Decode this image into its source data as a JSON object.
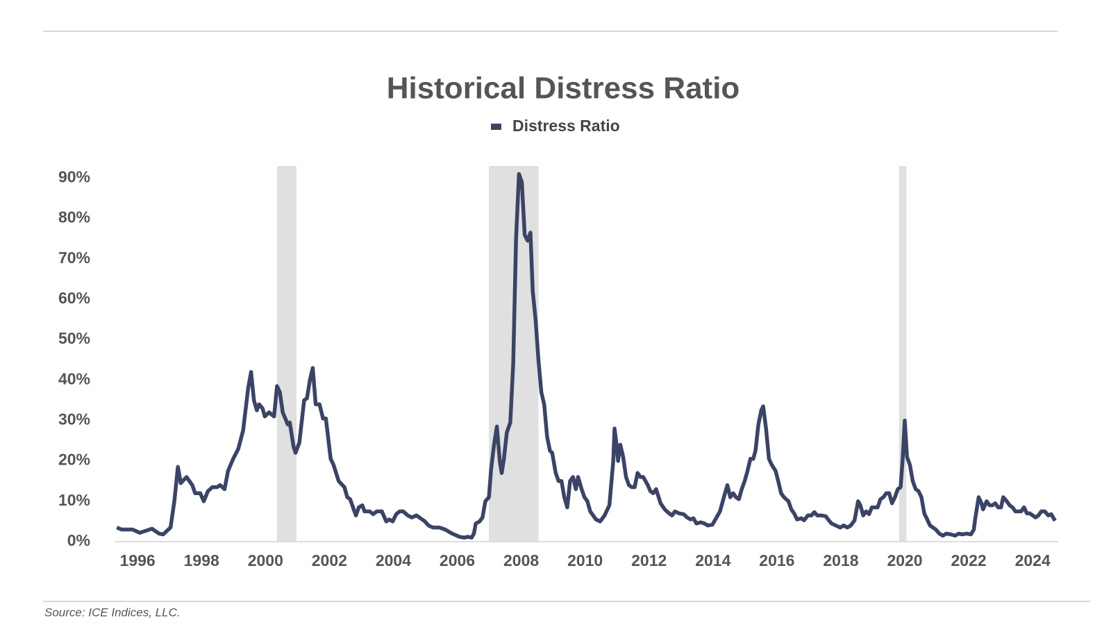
{
  "chart_data": {
    "type": "line",
    "title": "Historical Distress Ratio",
    "source": "Source: ICE Indices, LLC.",
    "x": [
      1995.35,
      1995.5,
      1995.84,
      1996.07,
      1996.45,
      1996.67,
      1996.8,
      1997.03,
      1997.15,
      1997.26,
      1997.35,
      1997.53,
      1997.71,
      1997.8,
      1997.96,
      1998.07,
      1998.2,
      1998.34,
      1998.49,
      1998.58,
      1998.72,
      1998.83,
      1998.99,
      1999.15,
      1999.3,
      1999.46,
      1999.55,
      1999.64,
      1999.73,
      1999.8,
      1999.91,
      1999.98,
      2000.11,
      2000.27,
      2000.36,
      2000.45,
      2000.54,
      2000.7,
      2000.76,
      2000.88,
      2000.94,
      2001.06,
      2001.21,
      2001.3,
      2001.39,
      2001.48,
      2001.57,
      2001.69,
      2001.8,
      2001.89,
      2002.04,
      2002.13,
      2002.29,
      2002.47,
      2002.56,
      2002.65,
      2002.76,
      2002.83,
      2002.92,
      2003.03,
      2003.1,
      2003.26,
      2003.37,
      2003.48,
      2003.64,
      2003.78,
      2003.87,
      2003.98,
      2004.09,
      2004.2,
      2004.31,
      2004.45,
      2004.58,
      2004.72,
      2004.85,
      2004.99,
      2005.1,
      2005.24,
      2005.44,
      2005.62,
      2005.84,
      2006.07,
      2006.22,
      2006.34,
      2006.45,
      2006.52,
      2006.58,
      2006.7,
      2006.79,
      2006.88,
      2006.99,
      2007.06,
      2007.15,
      2007.24,
      2007.33,
      2007.39,
      2007.46,
      2007.55,
      2007.66,
      2007.75,
      2007.84,
      2007.93,
      2008.02,
      2008.11,
      2008.2,
      2008.29,
      2008.36,
      2008.45,
      2008.54,
      2008.63,
      2008.72,
      2008.81,
      2008.9,
      2008.97,
      2009.08,
      2009.17,
      2009.26,
      2009.35,
      2009.44,
      2009.53,
      2009.62,
      2009.71,
      2009.78,
      2009.89,
      2009.98,
      2010.07,
      2010.16,
      2010.25,
      2010.34,
      2010.47,
      2010.61,
      2010.76,
      2010.88,
      2010.92,
      2010.97,
      2011.03,
      2011.1,
      2011.19,
      2011.28,
      2011.37,
      2011.46,
      2011.55,
      2011.64,
      2011.73,
      2011.82,
      2011.96,
      2012.04,
      2012.13,
      2012.22,
      2012.36,
      2012.49,
      2012.63,
      2012.72,
      2012.81,
      2012.94,
      2013.08,
      2013.19,
      2013.3,
      2013.39,
      2013.48,
      2013.62,
      2013.73,
      2013.84,
      2013.98,
      2014.11,
      2014.22,
      2014.34,
      2014.45,
      2014.54,
      2014.63,
      2014.72,
      2014.81,
      2014.9,
      2014.99,
      2015.08,
      2015.17,
      2015.26,
      2015.33,
      2015.42,
      2015.51,
      2015.57,
      2015.66,
      2015.75,
      2015.84,
      2015.96,
      2016.04,
      2016.13,
      2016.22,
      2016.36,
      2016.45,
      2016.54,
      2016.63,
      2016.76,
      2016.85,
      2016.97,
      2017.08,
      2017.17,
      2017.26,
      2017.39,
      2017.53,
      2017.62,
      2017.71,
      2017.84,
      2017.98,
      2018.09,
      2018.2,
      2018.31,
      2018.43,
      2018.54,
      2018.61,
      2018.7,
      2018.79,
      2018.88,
      2018.97,
      2019.06,
      2019.15,
      2019.24,
      2019.33,
      2019.42,
      2019.51,
      2019.6,
      2019.69,
      2019.78,
      2019.87,
      2019.93,
      2020.0,
      2020.07,
      2020.16,
      2020.25,
      2020.34,
      2020.43,
      2020.52,
      2020.61,
      2020.7,
      2020.79,
      2020.88,
      2020.97,
      2021.08,
      2021.19,
      2021.3,
      2021.44,
      2021.57,
      2021.69,
      2021.8,
      2021.93,
      2022.07,
      2022.16,
      2022.2,
      2022.31,
      2022.4,
      2022.45,
      2022.56,
      2022.65,
      2022.74,
      2022.83,
      2022.92,
      2023.01,
      2023.08,
      2023.19,
      2023.28,
      2023.37,
      2023.46,
      2023.55,
      2023.64,
      2023.73,
      2023.82,
      2023.91,
      2024.0,
      2024.09,
      2024.18,
      2024.27,
      2024.38,
      2024.49,
      2024.58,
      2024.7
    ],
    "series": [
      {
        "name": "Distress Ratio",
        "color": "#3b4466",
        "values": [
          3.5,
          3,
          3,
          2.2,
          3.2,
          2,
          1.8,
          3.5,
          10,
          18.5,
          14.5,
          16,
          14,
          12,
          12,
          10,
          12.5,
          13.5,
          13.5,
          14,
          13,
          17.5,
          20.5,
          23,
          27.5,
          38,
          42,
          35,
          32.5,
          34,
          33,
          31,
          32,
          31,
          38.5,
          37,
          32,
          29,
          29.5,
          23.5,
          22,
          24.5,
          35,
          35.5,
          40,
          43,
          34,
          34,
          30.5,
          30.5,
          20.5,
          19,
          15,
          13.5,
          11,
          10.5,
          8,
          6.5,
          8.5,
          9,
          7.5,
          7.5,
          6.8,
          7.5,
          7.5,
          5,
          5.5,
          5,
          6.8,
          7.5,
          7.5,
          6.5,
          6,
          6.5,
          5.8,
          5,
          4,
          3.5,
          3.5,
          3,
          2,
          1.2,
          1,
          1.2,
          1,
          2,
          4.5,
          5,
          6,
          10,
          11,
          18,
          24,
          28.5,
          20,
          17,
          20.5,
          27,
          29.5,
          44,
          75,
          91,
          89,
          76,
          74.5,
          76.5,
          62,
          55,
          45,
          37,
          34,
          26,
          22.5,
          22,
          17,
          15,
          15,
          11,
          8.5,
          15,
          16,
          13,
          16,
          13,
          11,
          10,
          7.5,
          6.5,
          5.5,
          5,
          6.5,
          9,
          20,
          28,
          25,
          20,
          24,
          21,
          16,
          14,
          13.5,
          13.5,
          17,
          16,
          16,
          14,
          12.5,
          12,
          13,
          9.5,
          8,
          7,
          6.5,
          7.5,
          7,
          6.8,
          6,
          5.5,
          5.8,
          4.5,
          4.8,
          4.5,
          4,
          4.2,
          6,
          7.5,
          11,
          14,
          11,
          12,
          11,
          10.5,
          13,
          15,
          17.5,
          20.5,
          20.5,
          22.5,
          29,
          32.5,
          33.5,
          28,
          20.5,
          19,
          17.5,
          15,
          12,
          11,
          10,
          8,
          7,
          5.5,
          5.8,
          5.3,
          6.5,
          6.5,
          7.3,
          6.5,
          6.5,
          6.3,
          5.3,
          4.5,
          4,
          3.5,
          4,
          3.5,
          4,
          5.3,
          10,
          9,
          6.5,
          7.5,
          6.8,
          8.5,
          8.5,
          8.5,
          10.5,
          11,
          12,
          12,
          9.5,
          11,
          13,
          13.5,
          20,
          30,
          21,
          19,
          15,
          13,
          12.5,
          11,
          7,
          5.5,
          4,
          3.5,
          3,
          2,
          1.5,
          2,
          1.8,
          1.5,
          2,
          1.8,
          2,
          1.8,
          3,
          5.5,
          11,
          9.5,
          8,
          10,
          9,
          9,
          9.5,
          8.5,
          8.5,
          11,
          10,
          9,
          8.5,
          7.5,
          7.5,
          7.5,
          8.5,
          7,
          7,
          6.5,
          6,
          6.5,
          7.5,
          7.5,
          6.5,
          6.8,
          5.2
        ]
      }
    ],
    "shaded_ranges": [
      [
        2000.36,
        2000.97
      ],
      [
        2006.99,
        2008.54
      ],
      [
        2019.82,
        2020.05
      ]
    ],
    "shade_color": "#e0e0e0",
    "xlim": [
      1995.28,
      2024.8
    ],
    "xticks": [
      1996,
      1998,
      2000,
      2002,
      2004,
      2006,
      2008,
      2010,
      2012,
      2014,
      2016,
      2018,
      2020,
      2022,
      2024
    ],
    "ylim": [
      0,
      93
    ],
    "yticks": [
      {
        "value": 0,
        "label": "0%"
      },
      {
        "value": 10,
        "label": "10%"
      },
      {
        "value": 20,
        "label": "20%"
      },
      {
        "value": 30,
        "label": "30%"
      },
      {
        "value": 40,
        "label": "40%"
      },
      {
        "value": 50,
        "label": "50%"
      },
      {
        "value": 60,
        "label": "60%"
      },
      {
        "value": 70,
        "label": "70%"
      },
      {
        "value": 80,
        "label": "80%"
      },
      {
        "value": 90,
        "label": "90%"
      }
    ],
    "grid": false
  }
}
